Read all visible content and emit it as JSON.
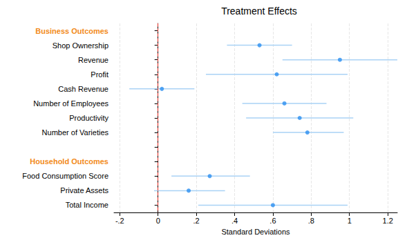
{
  "chart_data": {
    "type": "coefficient",
    "title": "Treatment Effects",
    "x_label": "Standard Deviations",
    "orientation": "horizontal",
    "grid": true,
    "color": "#2a8ef0",
    "reference_line": 0,
    "xlim": [
      -0.23,
      1.25
    ],
    "xticks": [
      {
        "value": -0.2,
        "label": "-.2"
      },
      0,
      {
        "value": 0.2,
        "label": ".2"
      },
      {
        "value": 0.4,
        "label": ".4"
      },
      {
        "value": 0.6,
        "label": ".6"
      },
      {
        "value": 0.8,
        "label": ".8"
      },
      1,
      1.2
    ],
    "groups": [
      {
        "label": "Business Outcomes",
        "categories": [
          "Shop Ownership",
          "Revenue",
          "Profit",
          "Cash Revenue",
          "Number of Employees",
          "Productivity",
          "Number of Varieties"
        ],
        "values": [
          0.53,
          0.95,
          0.62,
          0.02,
          0.66,
          0.74,
          0.78
        ],
        "lower": [
          0.36,
          0.65,
          0.25,
          -0.15,
          0.44,
          0.46,
          0.6
        ],
        "upper": [
          0.7,
          1.25,
          0.99,
          0.19,
          0.88,
          1.02,
          0.97
        ]
      },
      {
        "label": "Household Outcomes",
        "categories": [
          "Food Consumption Score",
          "Private Assets",
          "Total Income"
        ],
        "values": [
          0.27,
          0.16,
          0.6
        ],
        "lower": [
          0.07,
          -0.02,
          0.21
        ],
        "upper": [
          0.48,
          0.35,
          0.99
        ]
      }
    ]
  }
}
